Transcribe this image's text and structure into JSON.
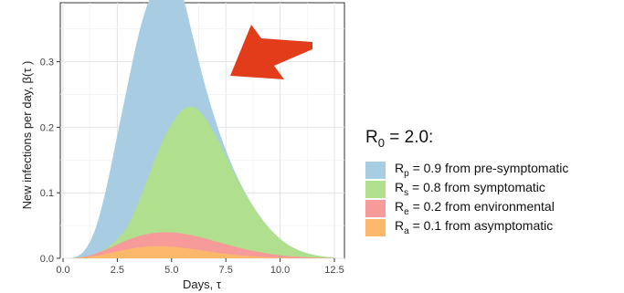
{
  "chart_data": {
    "type": "area",
    "stacked": true,
    "xlabel": "Days, τ",
    "ylabel": "New infections per day, β(τ )",
    "xlim": [
      0,
      12.5
    ],
    "ylim": [
      0,
      0.39
    ],
    "x_ticks": [
      "0.0",
      "2.5",
      "5.0",
      "7.5",
      "10.0",
      "12.5"
    ],
    "y_ticks": [
      "0.0",
      "0.1",
      "0.2",
      "0.3"
    ],
    "grid": true,
    "legend_position": "right",
    "x": [
      0,
      0.5,
      1,
      1.5,
      2,
      2.5,
      3,
      3.5,
      4,
      4.5,
      5,
      5.5,
      6,
      6.5,
      7,
      7.5,
      8,
      8.5,
      9,
      9.5,
      10,
      10.5,
      11,
      11.5,
      12,
      12.5
    ],
    "series": [
      {
        "name": "R_a = 0.1 from asymptomatic",
        "color": "#fbb86b",
        "values": [
          0,
          0.0002,
          0.0013,
          0.0036,
          0.0069,
          0.0106,
          0.0141,
          0.0167,
          0.0182,
          0.0185,
          0.0178,
          0.0161,
          0.0139,
          0.0115,
          0.0091,
          0.0069,
          0.005,
          0.0035,
          0.0024,
          0.0015,
          0.0009,
          0.0005,
          0.0003,
          0.0002,
          0.0001,
          0
        ]
      },
      {
        "name": "R_e = 0.2 from environmental",
        "color": "#f79b9a",
        "values": [
          0,
          0.0002,
          0.0013,
          0.0036,
          0.0069,
          0.0106,
          0.0141,
          0.0172,
          0.0195,
          0.021,
          0.0217,
          0.0216,
          0.0208,
          0.0192,
          0.0171,
          0.0147,
          0.0121,
          0.0096,
          0.0073,
          0.0054,
          0.0038,
          0.0026,
          0.0017,
          0.001,
          0.0006,
          0.0003
        ]
      },
      {
        "name": "R_s = 0.8 from symptomatic",
        "color": "#b0df8d",
        "values": [
          0,
          0,
          0,
          0.0002,
          0.0017,
          0.0076,
          0.0223,
          0.0536,
          0.0927,
          0.1328,
          0.1654,
          0.1883,
          0.1963,
          0.1853,
          0.1628,
          0.1347,
          0.1058,
          0.0798,
          0.0575,
          0.0392,
          0.0251,
          0.015,
          0.0084,
          0.0044,
          0.0021,
          0.0009
        ]
      },
      {
        "name": "R_p = 0.9 from pre-symptomatic",
        "color": "#a8cde3",
        "values": [
          0,
          0.0008,
          0.0099,
          0.0384,
          0.0926,
          0.1593,
          0.2176,
          0.2566,
          0.2669,
          0.2589,
          0.2351,
          0.1758,
          0.1045,
          0.053,
          0.0236,
          0.0091,
          0.0031,
          0.0009,
          0.0002,
          0.0001,
          0,
          0,
          0,
          0,
          0,
          0
        ]
      }
    ]
  },
  "legend": {
    "title_main": "R",
    "title_sub": "0",
    "title_rest": " = 2.0:",
    "items": [
      {
        "main": "R",
        "sub": "p",
        "rest": " = 0.9 from pre-symptomatic",
        "color": "#a8cde3"
      },
      {
        "main": "R",
        "sub": "s",
        "rest": " = 0.8 from symptomatic",
        "color": "#b0df8d"
      },
      {
        "main": "R",
        "sub": "e",
        "rest": " = 0.2 from environmental",
        "color": "#f79b9a"
      },
      {
        "main": "R",
        "sub": "a",
        "rest": " = 0.1 from asymptomatic",
        "color": "#fbb86b"
      }
    ]
  },
  "annotation": {
    "arrow_color": "#e23c1a",
    "arrow_icon": "arrow-left-down"
  }
}
